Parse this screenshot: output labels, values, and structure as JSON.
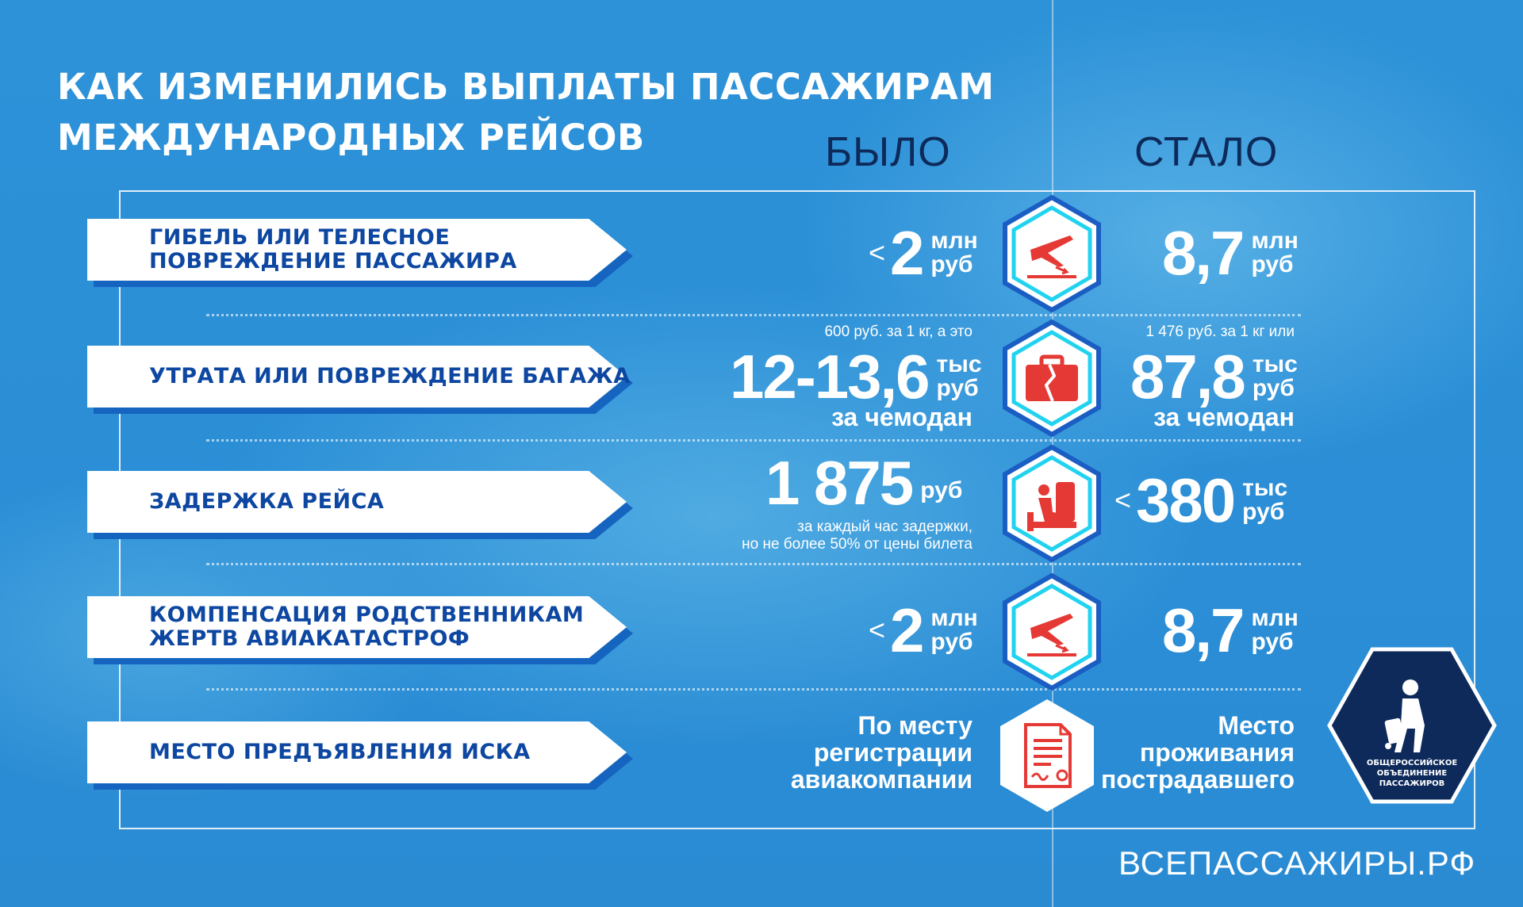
{
  "title_line1": "КАК ИЗМЕНИЛИСЬ ВЫПЛАТЫ ПАССАЖИРАМ",
  "title_line2": "МЕЖДУНАРОДНЫХ РЕЙСОВ",
  "col_before": "БЫЛО",
  "col_after": "СТАЛО",
  "rows": [
    {
      "label_line1": "ГИБЕЛЬ ИЛИ ТЕЛЕСНОЕ",
      "label_line2": "ПОВРЕЖДЕНИЕ ПАССАЖИРА",
      "icon": "plane-landing-icon",
      "before_prefix": "<",
      "before_value": "2",
      "before_unit1": "млн",
      "before_unit2": "руб",
      "after_value": "8,7",
      "after_unit1": "млн",
      "after_unit2": "руб"
    },
    {
      "label_line1": "УТРАТА ИЛИ ПОВРЕЖДЕНИЕ БАГАЖА",
      "icon": "broken-suitcase-icon",
      "before_note": "600 руб. за 1 кг, а это",
      "before_value": "12-13,6",
      "before_unit1": "тыс",
      "before_unit2": "руб",
      "before_per": "за чемодан",
      "after_note": "1 476 руб. за 1 кг или",
      "after_value": "87,8",
      "after_unit1": "тыс",
      "after_unit2": "руб",
      "after_per": "за чемодан"
    },
    {
      "label_line1": "ЗАДЕРЖКА РЕЙСА",
      "icon": "waiting-passenger-icon",
      "before_value": "1 875",
      "before_unit1": "руб",
      "before_note1": "за каждый час задержки,",
      "before_note2": "но не более 50% от цены билета",
      "after_prefix": "<",
      "after_value": "380",
      "after_unit1": "тыс",
      "after_unit2": "руб"
    },
    {
      "label_line1": "КОМПЕНСАЦИЯ РОДСТВЕННИКАМ",
      "label_line2": "ЖЕРТВ АВИАКАТАСТРОФ",
      "icon": "plane-landing-icon",
      "before_prefix": "<",
      "before_value": "2",
      "before_unit1": "млн",
      "before_unit2": "руб",
      "after_value": "8,7",
      "after_unit1": "млн",
      "after_unit2": "руб"
    },
    {
      "label_line1": "МЕСТО ПРЕДЪЯВЛЕНИЯ ИСКА",
      "icon": "document-icon",
      "before_line1": "По месту",
      "before_line2": "регистрации",
      "before_line3": "авиакомпании",
      "after_line1": "Место",
      "after_line2": "проживания",
      "after_line3": "пострадавшего"
    }
  ],
  "logo_line1": "ОБЩЕРОССИЙСКОЕ",
  "logo_line2": "ОБЪЕДИНЕНИЕ",
  "logo_line3": "ПАССАЖИРОВ",
  "website": "ВСЕПАССАЖИРЫ.РФ",
  "colors": {
    "bg": "#2a8fd6",
    "label_text": "#0d47a1",
    "hex_border": "#1a5ec4",
    "hex_cyan": "#22d3f0",
    "icon_red": "#e53935",
    "logo_bg": "#0d2a5a"
  }
}
